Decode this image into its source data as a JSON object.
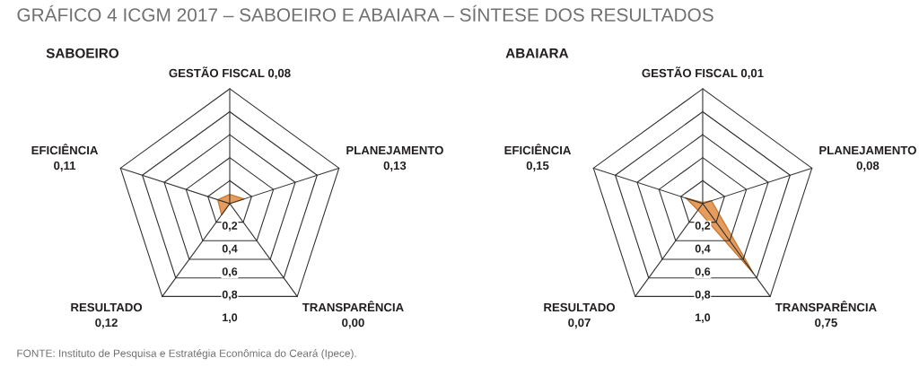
{
  "chart_data": [
    {
      "type": "radar",
      "title": "SABOEIRO",
      "annotations": [
        "GRÁFICO 4 ICGM 2017 – SABOEIRO E ABAIARA – SÍNTESE DOS RESULTADOS",
        "FONTE: Instituto de Pesquisa e Estratégia Econômica do Ceará (Ipece)."
      ],
      "categories": [
        "GESTÃO FISCAL 0,08",
        "PLANEJAMENTO\n0,13",
        "TRANSPARÊNCIA\n0,00",
        "RESULTADO\n0,12",
        "EFICIÊNCIA\n0,11"
      ],
      "series": [
        {
          "color": "#e59c5c",
          "values": [
            0.08,
            0.13,
            0.0,
            0.12,
            0.11
          ]
        }
      ],
      "ylim": [
        0,
        1
      ],
      "yticks": [
        {
          "value": 0.2,
          "label": "0,2"
        },
        {
          "value": 0.4,
          "label": "0,4"
        },
        {
          "value": 0.6,
          "label": "0,6"
        },
        {
          "value": 0.8,
          "label": "0,8"
        },
        {
          "value": 1.0,
          "label": "1,0"
        }
      ],
      "grid": true
    },
    {
      "type": "radar",
      "title": "ABAIARA",
      "categories": [
        "GESTÃO FISCAL 0,01",
        "PLANEJAMENTO\n0,08",
        "TRANSPARÊNCIA\n0,75",
        "RESULTADO\n0,07",
        "EFICIÊNCIA\n0,15"
      ],
      "series": [
        {
          "color": "#e59c5c",
          "values": [
            0.01,
            0.08,
            0.75,
            0.07,
            0.15
          ]
        }
      ],
      "ylim": [
        0,
        1
      ],
      "yticks": [
        {
          "value": 0.2,
          "label": "0,2"
        },
        {
          "value": 0.4,
          "label": "0,4"
        },
        {
          "value": 0.6,
          "label": "0,6"
        },
        {
          "value": 0.8,
          "label": "0,8"
        },
        {
          "value": 1.0,
          "label": "1,0"
        }
      ],
      "grid": true
    }
  ]
}
